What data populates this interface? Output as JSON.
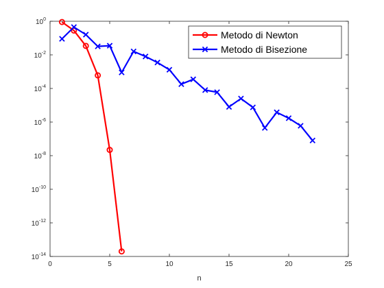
{
  "chart_data": {
    "type": "line",
    "title": "",
    "xlabel": "n",
    "ylabel": "",
    "xlim": [
      0,
      25
    ],
    "ylim_log10": [
      -14,
      0
    ],
    "yscale": "log",
    "x_ticks": [
      0,
      5,
      10,
      15,
      20,
      25
    ],
    "x_tick_labels": [
      "0",
      "5",
      "10",
      "15",
      "20",
      "25"
    ],
    "y_tick_exponents": [
      -14,
      -12,
      -10,
      -8,
      -6,
      -4,
      -2,
      0
    ],
    "y_tick_labels": [
      "10-14",
      "10-12",
      "10-10",
      "10-8",
      "10-6",
      "10-4",
      "10-2",
      "100"
    ],
    "grid": false,
    "legend_position": "top-right",
    "series": [
      {
        "name": "Metodo di Newton",
        "color": "#ff0000",
        "marker": "circle",
        "x": [
          1,
          2,
          3,
          4,
          5,
          6
        ],
        "y": [
          0.9,
          0.28,
          0.034,
          0.0006,
          2.2e-08,
          2e-14
        ]
      },
      {
        "name": "Metodo di Bisezione",
        "color": "#0000ff",
        "marker": "x",
        "x": [
          1,
          2,
          3,
          4,
          5,
          6,
          7,
          8,
          9,
          10,
          11,
          12,
          13,
          14,
          15,
          16,
          17,
          18,
          19,
          20,
          21,
          22
        ],
        "y": [
          0.09,
          0.45,
          0.16,
          0.032,
          0.035,
          0.0009,
          0.016,
          0.008,
          0.0035,
          0.0013,
          0.00018,
          0.00035,
          8e-05,
          6e-05,
          8e-06,
          2.5e-05,
          7.5e-06,
          4.5e-07,
          3.8e-06,
          1.7e-06,
          6e-07,
          8e-08
        ]
      }
    ]
  }
}
